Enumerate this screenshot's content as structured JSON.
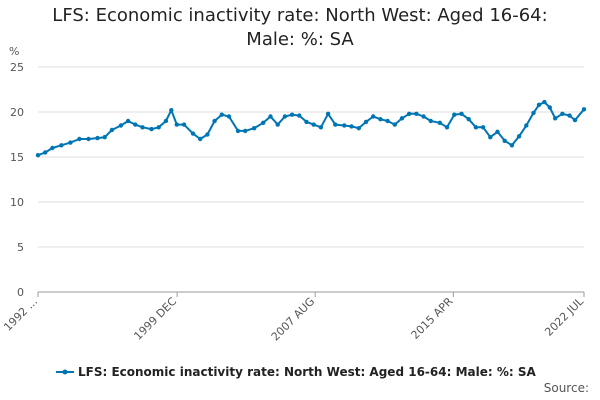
{
  "chart_data": {
    "type": "line",
    "title_line1": "LFS: Economic inactivity rate: North West: Aged 16-64:",
    "title_line2": "Male: %: SA",
    "ylabel": "%",
    "ylim": [
      0,
      25
    ],
    "yticks": [
      0,
      5,
      10,
      15,
      20,
      25
    ],
    "xlim": [
      1992.2,
      2022.5
    ],
    "x_tick_labels": [
      {
        "label": "1992 ...",
        "x": 1992.2
      },
      {
        "label": "1999 DEC",
        "x": 1999.92
      },
      {
        "label": "2007 AUG",
        "x": 2007.58
      },
      {
        "label": "2015 APR",
        "x": 2015.25
      },
      {
        "label": "2022 JUL",
        "x": 2022.5
      }
    ],
    "grid": true,
    "legend_position": "bottom",
    "series": [
      {
        "name": "LFS: Economic inactivity rate: North West: Aged 16-64: Male: %: SA",
        "color": "#0075b4",
        "points": [
          [
            1992.2,
            15.2
          ],
          [
            1992.6,
            15.5
          ],
          [
            1993.0,
            16.0
          ],
          [
            1993.5,
            16.3
          ],
          [
            1994.0,
            16.6
          ],
          [
            1994.5,
            17.0
          ],
          [
            1995.0,
            17.0
          ],
          [
            1995.5,
            17.1
          ],
          [
            1995.9,
            17.2
          ],
          [
            1996.3,
            18.0
          ],
          [
            1996.8,
            18.5
          ],
          [
            1997.2,
            19.0
          ],
          [
            1997.6,
            18.6
          ],
          [
            1998.0,
            18.3
          ],
          [
            1998.5,
            18.1
          ],
          [
            1998.9,
            18.3
          ],
          [
            1999.3,
            19.0
          ],
          [
            1999.6,
            20.2
          ],
          [
            1999.9,
            18.6
          ],
          [
            2000.3,
            18.6
          ],
          [
            2000.8,
            17.6
          ],
          [
            2001.2,
            17.0
          ],
          [
            2001.6,
            17.5
          ],
          [
            2002.0,
            19.0
          ],
          [
            2002.4,
            19.7
          ],
          [
            2002.8,
            19.5
          ],
          [
            2003.3,
            17.9
          ],
          [
            2003.7,
            17.9
          ],
          [
            2004.2,
            18.2
          ],
          [
            2004.7,
            18.8
          ],
          [
            2005.1,
            19.5
          ],
          [
            2005.5,
            18.6
          ],
          [
            2005.9,
            19.5
          ],
          [
            2006.3,
            19.7
          ],
          [
            2006.7,
            19.6
          ],
          [
            2007.1,
            18.9
          ],
          [
            2007.5,
            18.6
          ],
          [
            2007.9,
            18.3
          ],
          [
            2008.3,
            19.8
          ],
          [
            2008.7,
            18.6
          ],
          [
            2009.2,
            18.5
          ],
          [
            2009.6,
            18.4
          ],
          [
            2010.0,
            18.2
          ],
          [
            2010.4,
            18.9
          ],
          [
            2010.8,
            19.5
          ],
          [
            2011.2,
            19.2
          ],
          [
            2011.6,
            19.0
          ],
          [
            2012.0,
            18.6
          ],
          [
            2012.4,
            19.3
          ],
          [
            2012.8,
            19.8
          ],
          [
            2013.2,
            19.8
          ],
          [
            2013.6,
            19.5
          ],
          [
            2014.0,
            19.0
          ],
          [
            2014.5,
            18.8
          ],
          [
            2014.9,
            18.3
          ],
          [
            2015.3,
            19.7
          ],
          [
            2015.7,
            19.8
          ],
          [
            2016.1,
            19.2
          ],
          [
            2016.5,
            18.3
          ],
          [
            2016.9,
            18.3
          ],
          [
            2017.3,
            17.2
          ],
          [
            2017.7,
            17.8
          ],
          [
            2018.1,
            16.8
          ],
          [
            2018.5,
            16.3
          ],
          [
            2018.9,
            17.3
          ],
          [
            2019.3,
            18.5
          ],
          [
            2019.7,
            19.9
          ],
          [
            2020.0,
            20.8
          ],
          [
            2020.3,
            21.1
          ],
          [
            2020.6,
            20.5
          ],
          [
            2020.9,
            19.3
          ],
          [
            2021.3,
            19.8
          ],
          [
            2021.7,
            19.6
          ],
          [
            2022.0,
            19.1
          ],
          [
            2022.5,
            20.3
          ]
        ]
      }
    ]
  },
  "legend": {
    "label": "LFS: Economic inactivity rate: North West: Aged 16-64: Male: %: SA"
  },
  "footer": {
    "source_label": "Source:"
  }
}
